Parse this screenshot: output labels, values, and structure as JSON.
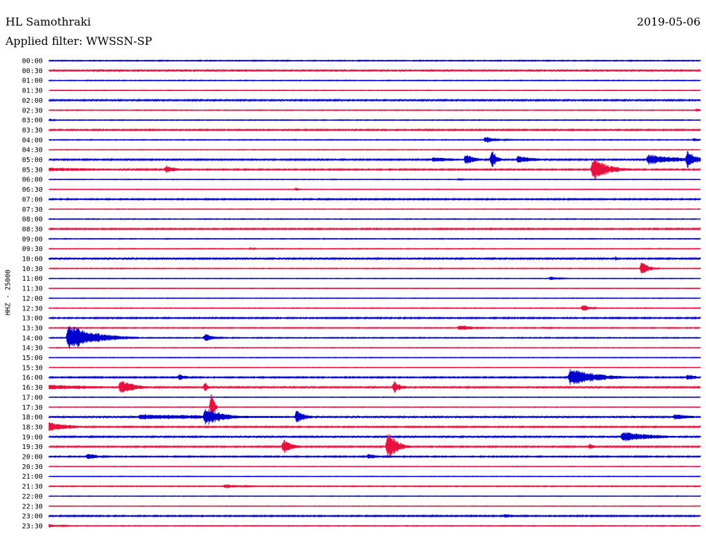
{
  "header": {
    "station": "HL Samothraki",
    "filter": "Applied filter: WWSSN-SP",
    "date": "2019-05-06"
  },
  "side_label": "HHZ - 25000",
  "colors": {
    "even": "#0000cc",
    "odd": "#e8103c"
  },
  "chart_data": {
    "type": "line",
    "title": "HL Samothraki",
    "subtitle": "Applied filter: WWSSN-SP",
    "ylabel": "HHZ - 25000",
    "grid": false,
    "legend": "none",
    "row_labels": [
      "00:00",
      "00:30",
      "01:00",
      "01:30",
      "02:00",
      "02:30",
      "03:00",
      "03:30",
      "04:00",
      "04:30",
      "05:00",
      "05:30",
      "06:00",
      "06:30",
      "07:00",
      "07:30",
      "08:00",
      "08:30",
      "09:00",
      "09:30",
      "10:00",
      "10:30",
      "11:00",
      "11:30",
      "12:00",
      "12:30",
      "13:00",
      "13:30",
      "14:00",
      "14:30",
      "15:00",
      "15:30",
      "16:00",
      "16:30",
      "17:00",
      "17:30",
      "18:00",
      "18:30",
      "19:00",
      "19:30",
      "20:00",
      "20:30",
      "21:00",
      "21:30",
      "22:00",
      "22:30",
      "23:00",
      "23:30"
    ],
    "row_noise": [
      0.6,
      1.4,
      0.5,
      0.4,
      1.1,
      0.5,
      0.5,
      1.0,
      0.5,
      0.4,
      1.0,
      0.9,
      0.4,
      0.4,
      0.9,
      0.4,
      0.5,
      0.9,
      0.5,
      0.5,
      1.1,
      0.5,
      0.4,
      0.4,
      0.4,
      0.5,
      0.9,
      0.6,
      0.6,
      0.4,
      0.4,
      0.4,
      0.9,
      1.2,
      0.4,
      0.4,
      1.3,
      0.9,
      1.1,
      1.0,
      0.8,
      0.4,
      0.4,
      0.6,
      0.4,
      0.4,
      0.9,
      0.5
    ],
    "events": [
      {
        "row": 2,
        "t": 0.0,
        "amp": 0,
        "dur": 0
      },
      {
        "row": 5,
        "t": 0.995,
        "amp": 3,
        "dur": 0.01
      },
      {
        "row": 6,
        "t": 0.002,
        "amp": 2,
        "dur": 0.01
      },
      {
        "row": 8,
        "t": 0.67,
        "amp": 5,
        "dur": 0.03
      },
      {
        "row": 8,
        "t": 0.99,
        "amp": 3,
        "dur": 0.01
      },
      {
        "row": 10,
        "t": 0.59,
        "amp": 4,
        "dur": 0.06
      },
      {
        "row": 10,
        "t": 0.64,
        "amp": 9,
        "dur": 0.02
      },
      {
        "row": 10,
        "t": 0.68,
        "amp": 18,
        "dur": 0.01
      },
      {
        "row": 10,
        "t": 0.72,
        "amp": 6,
        "dur": 0.04
      },
      {
        "row": 10,
        "t": 0.92,
        "amp": 8,
        "dur": 0.08
      },
      {
        "row": 10,
        "t": 0.98,
        "amp": 14,
        "dur": 0.02
      },
      {
        "row": 11,
        "t": 0.0,
        "amp": 3,
        "dur": 0.2
      },
      {
        "row": 11,
        "t": 0.18,
        "amp": 7,
        "dur": 0.02
      },
      {
        "row": 11,
        "t": 0.835,
        "amp": 18,
        "dur": 0.035
      },
      {
        "row": 12,
        "t": 0.63,
        "amp": 2,
        "dur": 0.01
      },
      {
        "row": 13,
        "t": 0.38,
        "amp": 3,
        "dur": 0.005
      },
      {
        "row": 19,
        "t": 0.31,
        "amp": 2,
        "dur": 0.01
      },
      {
        "row": 20,
        "t": 0.61,
        "amp": 2,
        "dur": 0.03
      },
      {
        "row": 20,
        "t": 0.87,
        "amp": 4,
        "dur": 0.005
      },
      {
        "row": 21,
        "t": 0.91,
        "amp": 12,
        "dur": 0.015
      },
      {
        "row": 22,
        "t": 0.77,
        "amp": 3,
        "dur": 0.02
      },
      {
        "row": 25,
        "t": 0.82,
        "amp": 6,
        "dur": 0.015
      },
      {
        "row": 27,
        "t": 0.63,
        "amp": 5,
        "dur": 0.03
      },
      {
        "row": 27,
        "t": 0.76,
        "amp": 1.5,
        "dur": 0.03
      },
      {
        "row": 28,
        "t": 0.03,
        "amp": 20,
        "dur": 0.06
      },
      {
        "row": 28,
        "t": 0.24,
        "amp": 6,
        "dur": 0.02
      },
      {
        "row": 32,
        "t": 0.2,
        "amp": 5,
        "dur": 0.02
      },
      {
        "row": 32,
        "t": 0.8,
        "amp": 14,
        "dur": 0.06
      },
      {
        "row": 32,
        "t": 0.98,
        "amp": 5,
        "dur": 0.02
      },
      {
        "row": 33,
        "t": 0.0,
        "amp": 4,
        "dur": 0.15
      },
      {
        "row": 33,
        "t": 0.11,
        "amp": 12,
        "dur": 0.03
      },
      {
        "row": 33,
        "t": 0.24,
        "amp": 10,
        "dur": 0.005
      },
      {
        "row": 33,
        "t": 0.53,
        "amp": 10,
        "dur": 0.015
      },
      {
        "row": 35,
        "t": 0.25,
        "amp": 28,
        "dur": 0.005
      },
      {
        "row": 36,
        "t": 0.14,
        "amp": 4,
        "dur": 0.3
      },
      {
        "row": 36,
        "t": 0.24,
        "amp": 14,
        "dur": 0.04
      },
      {
        "row": 36,
        "t": 0.38,
        "amp": 10,
        "dur": 0.02
      },
      {
        "row": 36,
        "t": 0.96,
        "amp": 5,
        "dur": 0.04
      },
      {
        "row": 37,
        "t": 0.0,
        "amp": 7,
        "dur": 0.05
      },
      {
        "row": 38,
        "t": 0.88,
        "amp": 8,
        "dur": 0.07
      },
      {
        "row": 39,
        "t": 0.36,
        "amp": 12,
        "dur": 0.02
      },
      {
        "row": 39,
        "t": 0.52,
        "amp": 24,
        "dur": 0.02
      },
      {
        "row": 39,
        "t": 0.83,
        "amp": 6,
        "dur": 0.01
      },
      {
        "row": 40,
        "t": 0.06,
        "amp": 6,
        "dur": 0.02
      },
      {
        "row": 40,
        "t": 0.49,
        "amp": 4,
        "dur": 0.03
      },
      {
        "row": 43,
        "t": 0.27,
        "amp": 3,
        "dur": 0.05
      },
      {
        "row": 46,
        "t": 0.7,
        "amp": 3,
        "dur": 0.04
      },
      {
        "row": 47,
        "t": 0.0,
        "amp": 3,
        "dur": 0.03
      }
    ]
  }
}
